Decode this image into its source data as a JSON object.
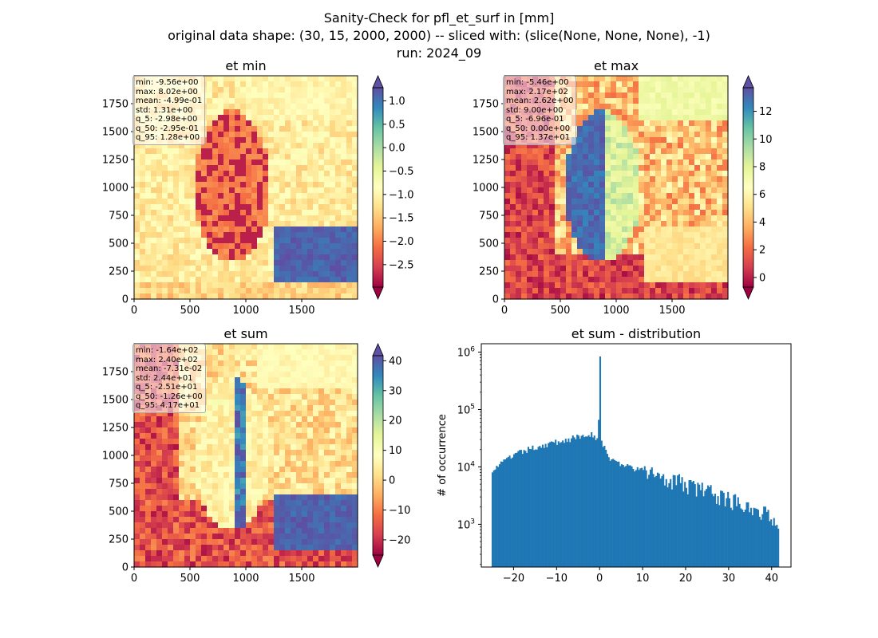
{
  "suptitle": {
    "line1": "Sanity-Check for pfl_et_surf in [mm]",
    "line2": "original data shape: (30, 15, 2000, 2000) -- sliced with: (slice(None, None, None), -1)",
    "line3": "run: 2024_09"
  },
  "chart_data": [
    {
      "type": "heatmap",
      "title": "et min",
      "xlim": [
        0,
        2000
      ],
      "ylim": [
        0,
        2000
      ],
      "xticks": [
        0,
        500,
        1000,
        1500
      ],
      "yticks": [
        0,
        250,
        500,
        750,
        1000,
        1250,
        1500,
        1750
      ],
      "colormap": "Spectral",
      "colorbar": {
        "range": [
          -2.98,
          1.28
        ],
        "ticks": [
          -2.5,
          -2.0,
          -1.5,
          -1.0,
          -0.5,
          0.0,
          0.5,
          1.0
        ],
        "tick_labels": [
          "−2.5",
          "−2.0",
          "−1.5",
          "−1.0",
          "−0.5",
          "0.0",
          "0.5",
          "1.0"
        ],
        "extend": "both"
      },
      "stats": [
        "min: -9.56e+00",
        "max: 8.02e+00",
        "mean: -4.99e-01",
        "std: 1.31e+00",
        "q_5: -2.98e+00",
        "q_50: -2.95e-01",
        "q_95: 1.28e+00"
      ]
    },
    {
      "type": "heatmap",
      "title": "et max",
      "xlim": [
        0,
        2000
      ],
      "ylim": [
        0,
        2000
      ],
      "xticks": [
        0,
        500,
        1000,
        1500
      ],
      "yticks": [
        0,
        250,
        500,
        750,
        1000,
        1250,
        1500,
        1750
      ],
      "colormap": "Spectral",
      "colorbar": {
        "range": [
          -0.696,
          13.7
        ],
        "ticks": [
          0,
          2,
          4,
          6,
          8,
          10,
          12
        ],
        "tick_labels": [
          "0",
          "2",
          "4",
          "6",
          "8",
          "10",
          "12"
        ],
        "extend": "both"
      },
      "stats": [
        "min: -5.46e+00",
        "max: 2.17e+02",
        "mean: 2.62e+00",
        "std: 9.00e+00",
        "q_5: -6.96e-01",
        "q_50: 0.00e+00",
        "q_95: 1.37e+01"
      ]
    },
    {
      "type": "heatmap",
      "title": "et sum",
      "xlim": [
        0,
        2000
      ],
      "ylim": [
        0,
        2000
      ],
      "xticks": [
        0,
        500,
        1000,
        1500
      ],
      "yticks": [
        0,
        250,
        500,
        750,
        1000,
        1250,
        1500,
        1750
      ],
      "colormap": "Spectral",
      "colorbar": {
        "range": [
          -25.1,
          41.7
        ],
        "ticks": [
          -20,
          -10,
          0,
          10,
          20,
          30,
          40
        ],
        "tick_labels": [
          "−20",
          "−10",
          "0",
          "10",
          "20",
          "30",
          "40"
        ],
        "extend": "both"
      },
      "stats": [
        "min: -1.64e+02",
        "max: 2.40e+02",
        "mean: -7.31e-02",
        "std: 2.44e+01",
        "q_5: -2.51e+01",
        "q_50: -1.26e+00",
        "q_95: 4.17e+01"
      ]
    },
    {
      "type": "bar",
      "title": "et sum - distribution",
      "ylabel": "# of occurrence",
      "xlabel": "",
      "yscale": "log",
      "xlim": [
        -27.5,
        44.5
      ],
      "ylim": [
        180,
        1400000
      ],
      "xticks": [
        -20,
        -10,
        0,
        10,
        20,
        30,
        40
      ],
      "xtick_labels": [
        "−20",
        "−10",
        "0",
        "10",
        "20",
        "30",
        "40"
      ],
      "yticks": [
        1000,
        10000,
        100000,
        1000000
      ],
      "ytick_exponents": [
        "3",
        "4",
        "5",
        "6"
      ],
      "color": "#1f77b4",
      "bin_range": [
        -25.1,
        41.7
      ],
      "bins": 200,
      "profile_x": [
        -25.1,
        -24,
        -20,
        -15,
        -10,
        -5,
        -2,
        -0.3,
        0,
        0.3,
        2,
        5,
        10,
        15,
        20,
        25,
        30,
        35,
        38,
        41.7
      ],
      "profile_y": [
        9000,
        10000,
        16000,
        22000,
        27000,
        33000,
        38000,
        30000,
        840000,
        28000,
        15000,
        11000,
        8500,
        7000,
        5000,
        3800,
        2800,
        2200,
        1600,
        1200
      ]
    }
  ]
}
